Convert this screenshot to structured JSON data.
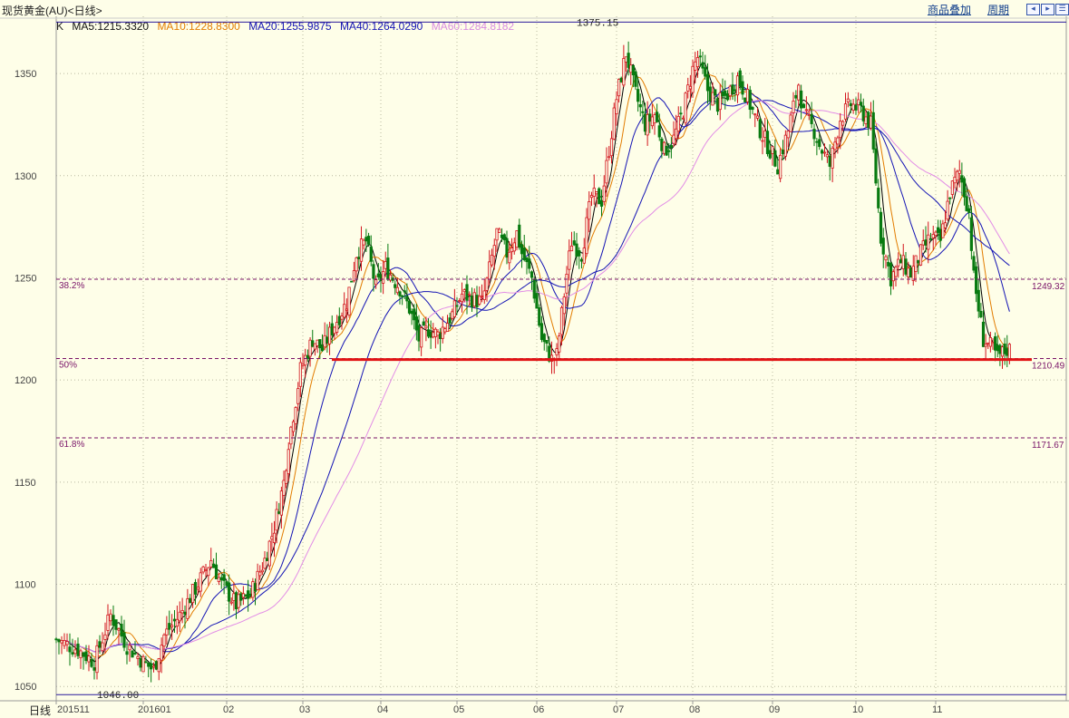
{
  "window": {
    "title": "现货黄金(AU)<日线>"
  },
  "toolbar": {
    "overlay_label": "商品叠加",
    "period_label": "周期"
  },
  "legend": {
    "k": "K",
    "ma5": "MA5:1215.3320",
    "ma10": "MA10:1228.8300",
    "ma20": "MA20:1255.9875",
    "ma40": "MA40:1264.0290",
    "ma60": "MA60:1284.8182"
  },
  "timeframe_label": "日线",
  "colors": {
    "bg": "#fefee8",
    "up": "#d2141c",
    "down": "#087a10",
    "ma5": "#000000",
    "ma10": "#e27c00",
    "ma20": "#1414b4",
    "ma40": "#1414b4",
    "ma60": "#e28ce6",
    "fib": "#7a1468",
    "support": "#e21414"
  },
  "chart_data": {
    "type": "candlestick",
    "x_ticks": [
      "201511",
      "201601",
      "02",
      "03",
      "04",
      "05",
      "06",
      "07",
      "08",
      "09",
      "10",
      "11"
    ],
    "y_ticks": [
      1050,
      1100,
      1150,
      1200,
      1250,
      1300,
      1350
    ],
    "ylim": [
      1043,
      1378
    ],
    "high_marker": {
      "value": 1375.15,
      "label": "1375.15"
    },
    "low_marker": {
      "value": 1046.0,
      "label": "1046.00"
    },
    "fib_levels": [
      {
        "pct": "38.2%",
        "value": 1249.32,
        "label": "1249.32"
      },
      {
        "pct": "50%",
        "value": 1210.49,
        "label": "1210.49"
      },
      {
        "pct": "61.8%",
        "value": 1171.67,
        "label": "1171.67"
      }
    ],
    "support_line": {
      "value": 1210,
      "from_month": "03",
      "to_month": "11"
    },
    "close_path": [
      [
        0,
        1073
      ],
      [
        8,
        1068
      ],
      [
        14,
        1062
      ],
      [
        20,
        1085
      ],
      [
        26,
        1070
      ],
      [
        32,
        1062
      ],
      [
        36,
        1058
      ],
      [
        40,
        1075
      ],
      [
        46,
        1085
      ],
      [
        52,
        1098
      ],
      [
        58,
        1112
      ],
      [
        62,
        1100
      ],
      [
        68,
        1090
      ],
      [
        74,
        1095
      ],
      [
        80,
        1112
      ],
      [
        84,
        1128
      ],
      [
        88,
        1150
      ],
      [
        90,
        1170
      ],
      [
        93,
        1190
      ],
      [
        95,
        1205
      ],
      [
        100,
        1220
      ],
      [
        104,
        1215
      ],
      [
        108,
        1225
      ],
      [
        114,
        1238
      ],
      [
        118,
        1262
      ],
      [
        122,
        1268
      ],
      [
        126,
        1245
      ],
      [
        130,
        1255
      ],
      [
        136,
        1245
      ],
      [
        140,
        1235
      ],
      [
        144,
        1220
      ],
      [
        148,
        1225
      ],
      [
        152,
        1222
      ],
      [
        158,
        1232
      ],
      [
        162,
        1242
      ],
      [
        166,
        1240
      ],
      [
        170,
        1238
      ],
      [
        172,
        1248
      ],
      [
        176,
        1272
      ],
      [
        180,
        1262
      ],
      [
        184,
        1272
      ],
      [
        186,
        1262
      ],
      [
        190,
        1250
      ],
      [
        194,
        1220
      ],
      [
        198,
        1210
      ],
      [
        200,
        1212
      ],
      [
        204,
        1252
      ],
      [
        206,
        1268
      ],
      [
        210,
        1262
      ],
      [
        214,
        1290
      ],
      [
        218,
        1288
      ],
      [
        224,
        1338
      ],
      [
        228,
        1360
      ],
      [
        232,
        1340
      ],
      [
        236,
        1325
      ],
      [
        240,
        1330
      ],
      [
        244,
        1312
      ],
      [
        248,
        1318
      ],
      [
        252,
        1332
      ],
      [
        256,
        1352
      ],
      [
        258,
        1358
      ],
      [
        262,
        1342
      ],
      [
        266,
        1335
      ],
      [
        270,
        1340
      ],
      [
        274,
        1348
      ],
      [
        278,
        1338
      ],
      [
        282,
        1325
      ],
      [
        286,
        1315
      ],
      [
        290,
        1305
      ],
      [
        294,
        1322
      ],
      [
        298,
        1345
      ],
      [
        300,
        1330
      ],
      [
        304,
        1322
      ],
      [
        306,
        1315
      ],
      [
        310,
        1305
      ],
      [
        314,
        1328
      ],
      [
        318,
        1335
      ],
      [
        322,
        1332
      ],
      [
        326,
        1325
      ],
      [
        330,
        1270
      ],
      [
        334,
        1250
      ],
      [
        338,
        1258
      ],
      [
        342,
        1252
      ],
      [
        346,
        1262
      ],
      [
        350,
        1270
      ],
      [
        354,
        1268
      ],
      [
        358,
        1292
      ],
      [
        362,
        1302
      ],
      [
        366,
        1282
      ],
      [
        368,
        1250
      ],
      [
        372,
        1220
      ],
      [
        376,
        1215
      ],
      [
        378,
        1211
      ],
      [
        382,
        1215
      ]
    ],
    "moving_averages": [
      "MA5",
      "MA10",
      "MA20",
      "MA40",
      "MA60"
    ]
  }
}
